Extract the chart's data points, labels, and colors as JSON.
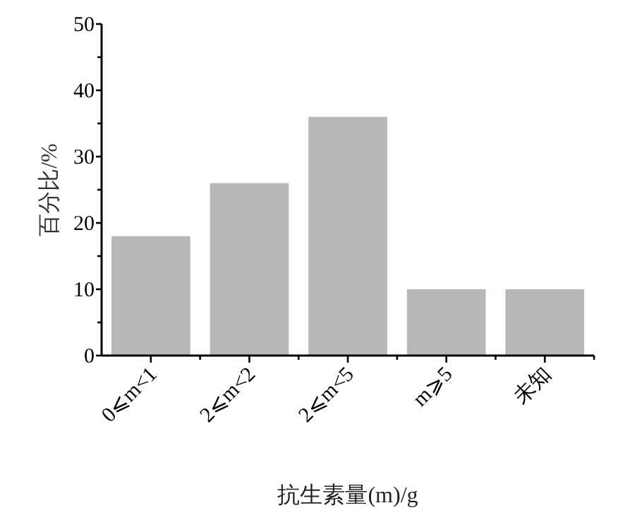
{
  "chart_data": {
    "type": "bar",
    "xlabel": "抗生素量(m)/g",
    "ylabel": "百分比/%",
    "categories": [
      "0⩽m<1",
      "2⩽m<2",
      "2⩽m<5",
      "m⩾5",
      "未知"
    ],
    "values": [
      18,
      26,
      36,
      10,
      10
    ],
    "color": "#b7b8b9",
    "ylim": [
      0,
      50
    ],
    "yticks": [
      0,
      {
        "value": 5,
        "label": null
      },
      10,
      {
        "value": 15,
        "label": null
      },
      20,
      {
        "value": 25,
        "label": null
      },
      30,
      {
        "value": 35,
        "label": null
      },
      40,
      {
        "value": 45,
        "label": null
      },
      50
    ],
    "grid": false
  }
}
